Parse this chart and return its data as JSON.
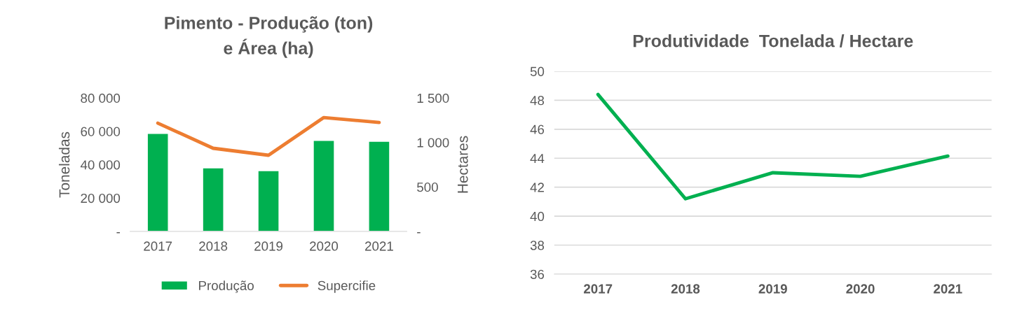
{
  "chart_data": [
    {
      "type": "bar",
      "title": "Pimento - Produção (ton)\ne Área (ha)",
      "categories": [
        "2017",
        "2018",
        "2019",
        "2020",
        "2021"
      ],
      "series": [
        {
          "name": "Produção",
          "type": "bar",
          "color": "#00b050",
          "values": [
            58700,
            38100,
            36400,
            54500,
            54000
          ]
        },
        {
          "name": "Supercifie",
          "type": "line",
          "axis": "y2",
          "color": "#ed7d31",
          "values": [
            1217,
            935,
            856,
            1280,
            1225
          ]
        }
      ],
      "ylabel": "Toneladas",
      "y2label": "Hectares",
      "ylim": [
        0,
        80000
      ],
      "yticks": [
        {
          "value": 0,
          "label": "-"
        },
        {
          "value": 20000,
          "label": "20 000"
        },
        {
          "value": 40000,
          "label": "40 000"
        },
        {
          "value": 60000,
          "label": "60 000"
        },
        {
          "value": 80000,
          "label": "80 000"
        }
      ],
      "y2lim": [
        0,
        1500
      ],
      "y2ticks": [
        {
          "value": 0,
          "label": "-"
        },
        {
          "value": 500,
          "label": "500"
        },
        {
          "value": 1000,
          "label": "1 000"
        },
        {
          "value": 1500,
          "label": "1 500"
        }
      ],
      "legend": "bottom",
      "grid": false
    },
    {
      "type": "line",
      "title": "Produtividade  Tonelada / Hectare",
      "categories": [
        "2017",
        "2018",
        "2019",
        "2020",
        "2021"
      ],
      "series": [
        {
          "color": "#00b050",
          "values": [
            48.4,
            41.2,
            43.0,
            42.75,
            44.15
          ]
        }
      ],
      "ylim": [
        36,
        50
      ],
      "yticks": [
        36,
        38,
        40,
        42,
        44,
        46,
        48,
        50
      ],
      "grid": "y",
      "legend": false
    }
  ]
}
